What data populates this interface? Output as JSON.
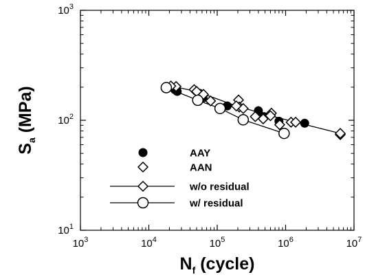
{
  "chart_data": {
    "type": "scatter",
    "title": "",
    "xscale": "log",
    "yscale": "log",
    "xlim": [
      1000,
      10000000
    ],
    "ylim": [
      10,
      1000
    ],
    "x_ticks": [
      {
        "value": 1000,
        "base": "10",
        "exp": "3"
      },
      {
        "value": 10000,
        "base": "10",
        "exp": "4"
      },
      {
        "value": 100000,
        "base": "10",
        "exp": "5"
      },
      {
        "value": 1000000,
        "base": "10",
        "exp": "6"
      },
      {
        "value": 10000000,
        "base": "10",
        "exp": "7"
      }
    ],
    "y_ticks": [
      {
        "value": 10,
        "base": "10",
        "exp": "1"
      },
      {
        "value": 100,
        "base": "10",
        "exp": "2"
      },
      {
        "value": 1000,
        "base": "10",
        "exp": "3"
      }
    ],
    "xlabel": {
      "main": "N",
      "sub": "f",
      "rest": " (cycle)"
    },
    "ylabel": {
      "main": "S",
      "sub": "a",
      "rest": " (MPa)"
    },
    "grid": false,
    "legend_position": "lower-center",
    "series": [
      {
        "name": "AAY",
        "marker": "filled-circle",
        "line": false,
        "points": [
          [
            24000,
            190
          ],
          [
            26000,
            183
          ],
          [
            55000,
            176
          ],
          [
            62000,
            160
          ],
          [
            140000,
            135
          ],
          [
            400000,
            122
          ],
          [
            480000,
            108
          ],
          [
            800000,
            98
          ],
          [
            1900000,
            94
          ]
        ]
      },
      {
        "name": "AAN",
        "marker": "open-diamond",
        "line": false,
        "points": [
          [
            25000,
            203
          ],
          [
            46000,
            190
          ],
          [
            63000,
            172
          ],
          [
            80000,
            150
          ],
          [
            205000,
            153
          ],
          [
            210000,
            132
          ],
          [
            240000,
            128
          ],
          [
            360000,
            108
          ],
          [
            470000,
            103
          ],
          [
            620000,
            116
          ],
          [
            820000,
            91
          ],
          [
            1200000,
            96
          ],
          [
            6300000,
            74
          ]
        ]
      },
      {
        "name": "w/o residual",
        "marker": "open-diamond",
        "line": true,
        "points": [
          [
            21000,
            205
          ],
          [
            50000,
            183
          ],
          [
            190000,
            135
          ],
          [
            600000,
            110
          ],
          [
            1400000,
            96
          ],
          [
            6300000,
            76
          ]
        ]
      },
      {
        "name": "w/ residual",
        "marker": "open-circle",
        "line": true,
        "points": [
          [
            18000,
            198
          ],
          [
            52000,
            152
          ],
          [
            110000,
            128
          ],
          [
            240000,
            101
          ],
          [
            950000,
            76
          ]
        ]
      }
    ]
  }
}
